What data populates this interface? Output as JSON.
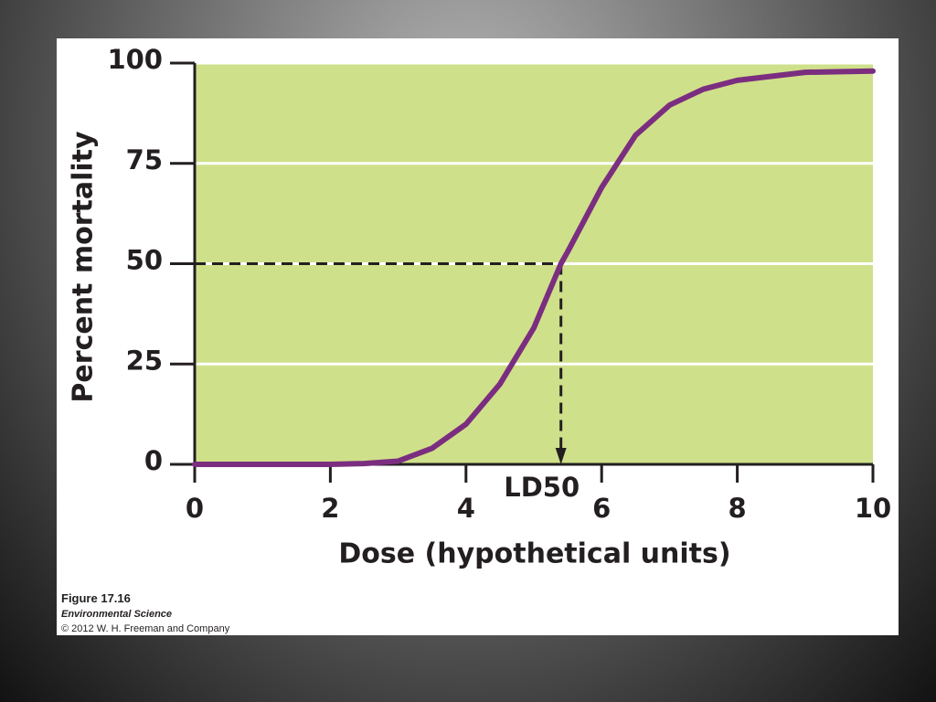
{
  "chart_data": {
    "type": "line",
    "x_label": "Dose (hypothetical units)",
    "y_label": "Percent mortality",
    "x": [
      0,
      1,
      2,
      2.5,
      3,
      3.5,
      4,
      4.5,
      5,
      5.4,
      5.5,
      6,
      6.5,
      7,
      7.5,
      8,
      9,
      10
    ],
    "series": [
      {
        "color": "#7b2e80",
        "values": [
          0,
          0,
          0,
          0.2,
          0.8,
          4,
          10,
          20,
          34,
          50,
          53,
          69,
          82,
          89.5,
          93.5,
          95.7,
          97.7,
          98
        ]
      }
    ],
    "xlim": [
      0,
      10
    ],
    "xticks": [
      0,
      2,
      4,
      6,
      8,
      10
    ],
    "ylim": [
      0,
      100
    ],
    "yticks": [
      0,
      25,
      50,
      75,
      100
    ],
    "grid": true,
    "background": "#cfe08a",
    "annotations": [
      {
        "text": "LD50",
        "x": 5.4,
        "y": 50
      }
    ]
  },
  "caption": {
    "figure": "Figure 17.16",
    "book": "Environmental Science",
    "copyright": "© 2012 W. H. Freeman and Company"
  }
}
